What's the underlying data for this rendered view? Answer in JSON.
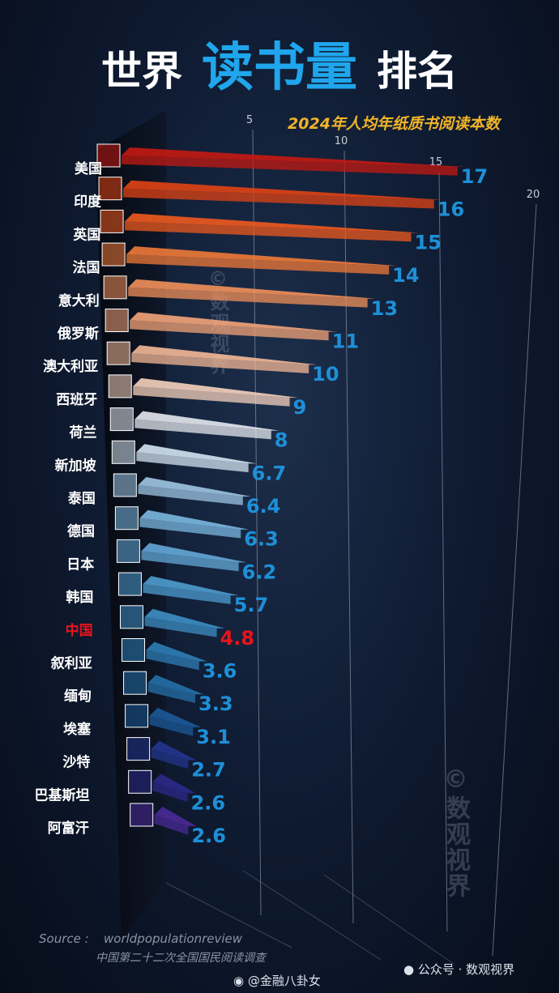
{
  "title": {
    "part1": "世界",
    "highlight": "读书量",
    "part2": "排名"
  },
  "chart_data": {
    "type": "bar",
    "orientation": "horizontal",
    "subtitle": "2024年人均年纸质书阅读本数",
    "x_ticks": [
      5,
      10,
      15,
      20
    ],
    "xlim": [
      0,
      20
    ],
    "categories": [
      "美国",
      "印度",
      "英国",
      "法国",
      "意大利",
      "俄罗斯",
      "澳大利亚",
      "西班牙",
      "荷兰",
      "新加坡",
      "泰国",
      "德国",
      "日本",
      "韩国",
      "中国",
      "叙利亚",
      "缅甸",
      "埃塞",
      "沙特",
      "巴基斯坦",
      "阿富汗"
    ],
    "values": [
      17,
      16,
      15,
      14,
      13,
      11,
      10,
      9,
      8,
      6.7,
      6.4,
      6.3,
      6.2,
      5.7,
      4.8,
      3.6,
      3.3,
      3.1,
      2.7,
      2.6,
      2.6
    ],
    "value_labels": [
      "17",
      "16",
      "15",
      "14",
      "13",
      "11",
      "10",
      "9",
      "8",
      "6.7",
      "6.4",
      "6.3",
      "6.2",
      "5.7",
      "4.8",
      "3.6",
      "3.3",
      "3.1",
      "2.7",
      "2.6",
      "2.6"
    ],
    "highlight_category": "中国",
    "colors": {
      "bars": [
        "#c41a12",
        "#e04314",
        "#ee5a1e",
        "#f07a38",
        "#f2905a",
        "#f3a478",
        "#f4b896",
        "#f6d2bc",
        "#e4e8ee",
        "#d3e3f0",
        "#9ec6e4",
        "#7bb8e0",
        "#64a9d8",
        "#4e9ccf",
        "#3e8ec4",
        "#2d7db6",
        "#2570a8",
        "#1c5a98",
        "#23358e",
        "#2b2a8a",
        "#4a2a98"
      ],
      "label": "#1e90d8",
      "highlight_label": "#e8141c",
      "tick": "#c9ced6",
      "category": "#ffffff"
    }
  },
  "footer": {
    "source_label": "Source :",
    "source_text": "worldpopulationreview",
    "survey": "中国第二十二次全国国民阅读调查"
  },
  "watermark": "©数观视界",
  "credits": {
    "wechat": "公众号 · 数观视界",
    "weibo": "@金融八卦女"
  }
}
